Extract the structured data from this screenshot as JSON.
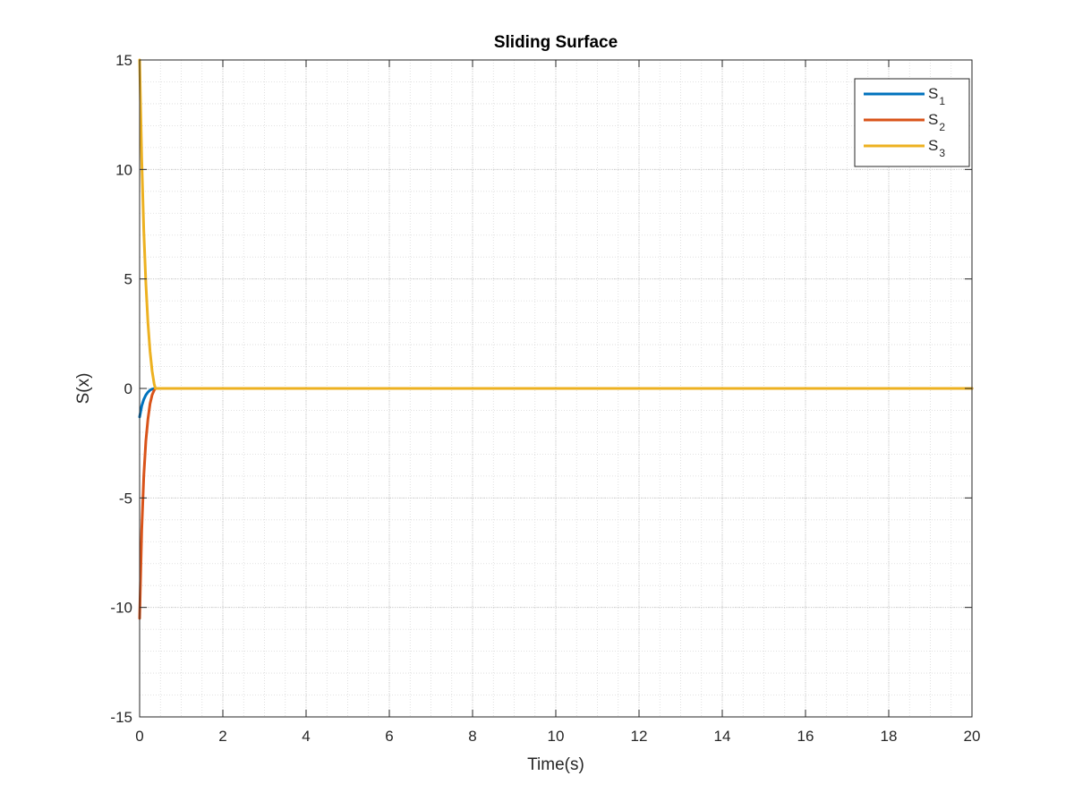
{
  "chart_data": {
    "type": "line",
    "title": "Sliding Surface",
    "xlabel": "Time(s)",
    "ylabel": "S(x)",
    "xlim": [
      0,
      20
    ],
    "ylim": [
      -15,
      15
    ],
    "xticks": [
      0,
      2,
      4,
      6,
      8,
      10,
      12,
      14,
      16,
      18,
      20
    ],
    "yticks": [
      -15,
      -10,
      -5,
      0,
      5,
      10,
      15
    ],
    "xtick_labels": [
      "0",
      "2",
      "4",
      "6",
      "8",
      "10",
      "12",
      "14",
      "16",
      "18",
      "20"
    ],
    "ytick_labels": [
      "-15",
      "-10",
      "-5",
      "0",
      "5",
      "10",
      "15"
    ],
    "grid": true,
    "minor_grid": true,
    "legend_position": "top-right",
    "series": [
      {
        "name": "S",
        "subscript": "1",
        "color": "#0072BD",
        "x": [
          0,
          0.05,
          0.1,
          0.15,
          0.2,
          0.25,
          0.3,
          0.35,
          0.4,
          1,
          5,
          10,
          15,
          20
        ],
        "y": [
          -1.3,
          -0.8,
          -0.5,
          -0.3,
          -0.17,
          -0.08,
          -0.03,
          -0.01,
          0,
          0,
          0,
          0,
          0,
          0
        ]
      },
      {
        "name": "S",
        "subscript": "2",
        "color": "#D95319",
        "x": [
          0,
          0.05,
          0.1,
          0.15,
          0.2,
          0.25,
          0.3,
          0.35,
          0.38,
          1,
          5,
          10,
          15,
          20
        ],
        "y": [
          -10.5,
          -6.5,
          -4.0,
          -2.4,
          -1.4,
          -0.7,
          -0.3,
          -0.08,
          0,
          0,
          0,
          0,
          0,
          0
        ]
      },
      {
        "name": "S",
        "subscript": "3",
        "color": "#EDB120",
        "x": [
          0,
          0.05,
          0.1,
          0.15,
          0.2,
          0.25,
          0.3,
          0.35,
          0.38,
          1,
          5,
          10,
          15,
          20
        ],
        "y": [
          15,
          10.5,
          7.2,
          4.8,
          3.0,
          1.7,
          0.8,
          0.2,
          0,
          0,
          0,
          0,
          0,
          0
        ]
      }
    ]
  }
}
